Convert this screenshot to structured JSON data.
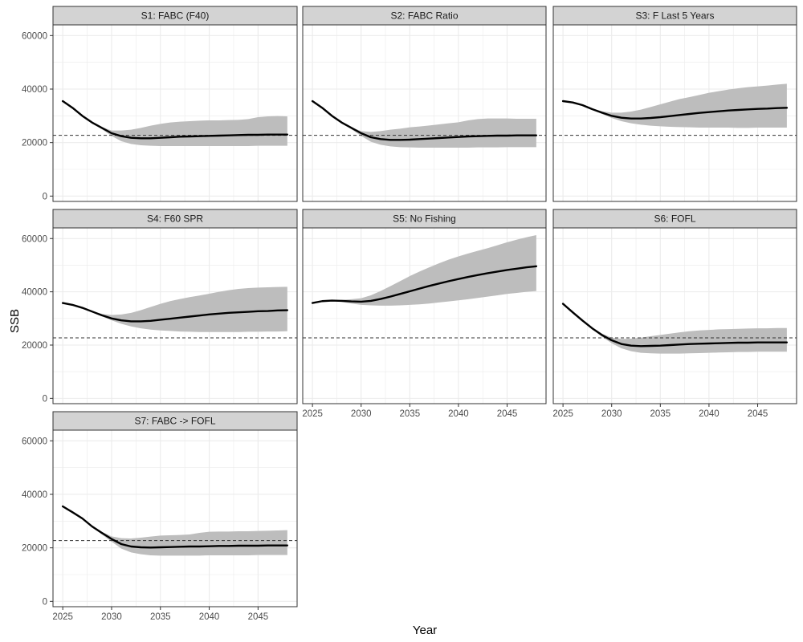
{
  "chart_data": {
    "type": "line",
    "layout": "facet-grid",
    "xlabel": "Year",
    "ylabel": "SSB",
    "xlim": [
      2024,
      2049
    ],
    "ylim": [
      -2000,
      64000
    ],
    "x_ticks": [
      2025,
      2030,
      2035,
      2040,
      2045
    ],
    "y_ticks": [
      0,
      20000,
      40000,
      60000
    ],
    "x_tick_labels": [
      "2025",
      "2030",
      "2035",
      "2040",
      "2045"
    ],
    "y_tick_labels": [
      "0",
      "20000",
      "40000",
      "60000"
    ],
    "reference_line": 22700,
    "grid": true,
    "colors": {
      "line": "#000000",
      "band": "#bdbdbd",
      "strip": "#d3d3d3",
      "grid": "#ebebeb",
      "border": "#333333",
      "reference": "#333333"
    },
    "panels": [
      {
        "title": "S1: FABC (F40)",
        "x": [
          2025,
          2026,
          2027,
          2028,
          2029,
          2030,
          2031,
          2032,
          2033,
          2034,
          2035,
          2036,
          2037,
          2038,
          2039,
          2040,
          2041,
          2042,
          2043,
          2044,
          2045,
          2046,
          2047,
          2048
        ],
        "median": [
          35500,
          33000,
          30000,
          27500,
          25500,
          23500,
          22400,
          21800,
          21600,
          21600,
          21800,
          22000,
          22200,
          22300,
          22400,
          22500,
          22600,
          22700,
          22800,
          22900,
          22900,
          23000,
          23000,
          23000
        ],
        "lower": [
          35500,
          33000,
          30000,
          27500,
          25000,
          22500,
          20500,
          19500,
          19000,
          18800,
          18700,
          18700,
          18700,
          18700,
          18700,
          18700,
          18700,
          18700,
          18700,
          18700,
          18800,
          18800,
          18800,
          18800
        ],
        "upper": [
          35500,
          33000,
          30000,
          27500,
          25800,
          24500,
          24500,
          24800,
          25500,
          26300,
          27000,
          27500,
          27800,
          28000,
          28200,
          28300,
          28300,
          28400,
          28500,
          28800,
          29500,
          29800,
          29900,
          29800
        ]
      },
      {
        "title": "S2: FABC Ratio",
        "x": [
          2025,
          2026,
          2027,
          2028,
          2029,
          2030,
          2031,
          2032,
          2033,
          2034,
          2035,
          2036,
          2037,
          2038,
          2039,
          2040,
          2041,
          2042,
          2043,
          2044,
          2045,
          2046,
          2047,
          2048
        ],
        "median": [
          35500,
          33000,
          30000,
          27500,
          25500,
          23500,
          22000,
          21300,
          21000,
          21000,
          21100,
          21300,
          21500,
          21700,
          21900,
          22100,
          22300,
          22400,
          22500,
          22600,
          22600,
          22700,
          22700,
          22700
        ],
        "lower": [
          35500,
          33000,
          30000,
          27500,
          25000,
          22500,
          20300,
          19200,
          18600,
          18300,
          18200,
          18100,
          18100,
          18100,
          18100,
          18100,
          18100,
          18200,
          18200,
          18200,
          18300,
          18300,
          18300,
          18300
        ],
        "upper": [
          35500,
          33000,
          30000,
          27500,
          25700,
          24300,
          24000,
          24300,
          24800,
          25200,
          25700,
          26000,
          26400,
          26800,
          27200,
          27600,
          28300,
          28800,
          29000,
          29000,
          29000,
          28900,
          28900,
          28900
        ]
      },
      {
        "title": "S3: F Last 5 Years",
        "x": [
          2025,
          2026,
          2027,
          2028,
          2029,
          2030,
          2031,
          2032,
          2033,
          2034,
          2035,
          2036,
          2037,
          2038,
          2039,
          2040,
          2041,
          2042,
          2043,
          2044,
          2045,
          2046,
          2047,
          2048
        ],
        "median": [
          35500,
          35000,
          34000,
          32500,
          31200,
          30000,
          29300,
          29000,
          29000,
          29200,
          29500,
          29900,
          30300,
          30700,
          31100,
          31400,
          31700,
          32000,
          32200,
          32400,
          32600,
          32700,
          32900,
          33000
        ],
        "lower": [
          35500,
          35000,
          34000,
          32300,
          30700,
          29200,
          28000,
          27200,
          26700,
          26300,
          26100,
          25900,
          25800,
          25700,
          25600,
          25600,
          25600,
          25600,
          25500,
          25500,
          25600,
          25600,
          25600,
          25600
        ],
        "upper": [
          35500,
          35000,
          34000,
          32700,
          31700,
          31200,
          31200,
          31600,
          32300,
          33300,
          34300,
          35300,
          36300,
          37000,
          37800,
          38600,
          39200,
          39800,
          40300,
          40700,
          41000,
          41300,
          41700,
          42000
        ]
      },
      {
        "title": "S4: F60 SPR",
        "x": [
          2025,
          2026,
          2027,
          2028,
          2029,
          2030,
          2031,
          2032,
          2033,
          2034,
          2035,
          2036,
          2037,
          2038,
          2039,
          2040,
          2041,
          2042,
          2043,
          2044,
          2045,
          2046,
          2047,
          2048
        ],
        "median": [
          35800,
          35100,
          34000,
          32600,
          31200,
          30000,
          29300,
          28900,
          28900,
          29100,
          29500,
          29900,
          30300,
          30700,
          31100,
          31500,
          31800,
          32100,
          32300,
          32500,
          32700,
          32800,
          33000,
          33100
        ],
        "lower": [
          35800,
          35100,
          34000,
          32400,
          30800,
          29300,
          28000,
          27000,
          26300,
          25800,
          25500,
          25300,
          25100,
          25000,
          24900,
          24900,
          24900,
          24900,
          24900,
          25000,
          25000,
          25100,
          25100,
          25200
        ],
        "upper": [
          35800,
          35100,
          34000,
          32800,
          31700,
          31300,
          31500,
          32100,
          33100,
          34300,
          35500,
          36500,
          37300,
          38000,
          38600,
          39300,
          40000,
          40600,
          41100,
          41400,
          41600,
          41700,
          41800,
          41900
        ]
      },
      {
        "title": "S5: No Fishing",
        "x": [
          2025,
          2026,
          2027,
          2028,
          2029,
          2030,
          2031,
          2032,
          2033,
          2034,
          2035,
          2036,
          2037,
          2038,
          2039,
          2040,
          2041,
          2042,
          2043,
          2044,
          2045,
          2046,
          2047,
          2048
        ],
        "median": [
          35800,
          36500,
          36700,
          36600,
          36400,
          36300,
          36600,
          37300,
          38200,
          39200,
          40200,
          41200,
          42200,
          43100,
          44000,
          44800,
          45600,
          46300,
          47000,
          47600,
          48200,
          48700,
          49200,
          49600
        ],
        "lower": [
          35800,
          36500,
          36700,
          36200,
          35600,
          35100,
          34900,
          34800,
          34800,
          34900,
          35100,
          35300,
          35600,
          36000,
          36400,
          36800,
          37200,
          37700,
          38200,
          38700,
          39200,
          39600,
          40000,
          40300
        ],
        "upper": [
          35800,
          36500,
          36700,
          37000,
          37200,
          37600,
          38700,
          40300,
          42100,
          44000,
          45900,
          47600,
          49200,
          50700,
          52100,
          53300,
          54400,
          55400,
          56400,
          57500,
          58600,
          59600,
          60500,
          61300
        ]
      },
      {
        "title": "S6: FOFL",
        "x": [
          2025,
          2026,
          2027,
          2028,
          2029,
          2030,
          2031,
          2032,
          2033,
          2034,
          2035,
          2036,
          2037,
          2038,
          2039,
          2040,
          2041,
          2042,
          2043,
          2044,
          2045,
          2046,
          2047,
          2048
        ],
        "median": [
          35500,
          32300,
          29200,
          26300,
          23800,
          21800,
          20400,
          19800,
          19600,
          19700,
          19800,
          20000,
          20200,
          20400,
          20500,
          20600,
          20700,
          20800,
          20900,
          20900,
          21000,
          21000,
          21000,
          21000
        ],
        "lower": [
          35500,
          32300,
          29200,
          26000,
          23100,
          20700,
          18800,
          17700,
          17100,
          16900,
          16800,
          16800,
          16800,
          16900,
          17000,
          17100,
          17200,
          17300,
          17400,
          17400,
          17500,
          17500,
          17500,
          17500
        ],
        "upper": [
          35500,
          32300,
          29200,
          26500,
          24300,
          22800,
          22300,
          22400,
          22800,
          23300,
          23800,
          24300,
          24800,
          25200,
          25500,
          25700,
          25900,
          26000,
          26100,
          26200,
          26300,
          26300,
          26400,
          26400
        ]
      },
      {
        "title": "S7: FABC -> FOFL",
        "x": [
          2025,
          2026,
          2027,
          2028,
          2029,
          2030,
          2031,
          2032,
          2033,
          2034,
          2035,
          2036,
          2037,
          2038,
          2039,
          2040,
          2041,
          2042,
          2043,
          2044,
          2045,
          2046,
          2047,
          2048
        ],
        "median": [
          35500,
          33300,
          31000,
          28000,
          25600,
          23300,
          21400,
          20500,
          20200,
          20100,
          20200,
          20300,
          20400,
          20500,
          20500,
          20600,
          20700,
          20700,
          20800,
          20800,
          20800,
          20900,
          20900,
          20900
        ],
        "lower": [
          35500,
          33300,
          31000,
          27800,
          25000,
          22300,
          19700,
          18300,
          17600,
          17200,
          17100,
          17100,
          17100,
          17100,
          17100,
          17200,
          17200,
          17200,
          17200,
          17200,
          17300,
          17300,
          17300,
          17300
        ],
        "upper": [
          35500,
          33300,
          31000,
          28200,
          26000,
          24300,
          23600,
          23500,
          23800,
          24200,
          24600,
          24700,
          24800,
          25000,
          25600,
          26000,
          26100,
          26100,
          26200,
          26200,
          26300,
          26400,
          26500,
          26600
        ]
      }
    ]
  }
}
